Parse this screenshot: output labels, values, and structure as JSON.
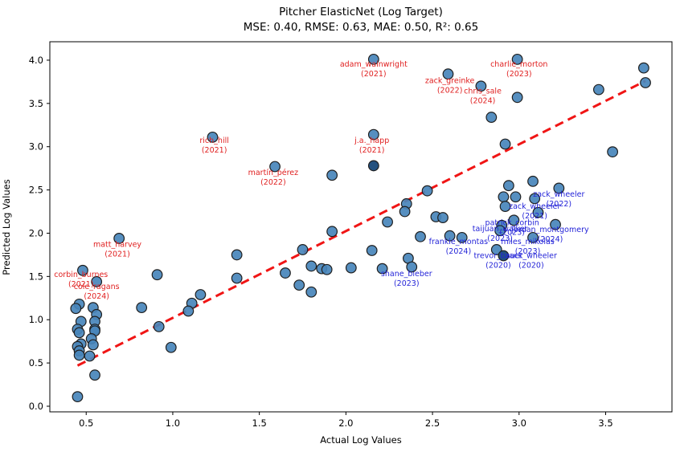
{
  "chart_data": {
    "type": "scatter",
    "title": "Pitcher ElasticNet (Log Target)",
    "subtitle": "MSE: 0.40, RMSE: 0.63, MAE: 0.50, R²: 0.65",
    "metrics": {
      "MSE": "0.40",
      "RMSE": "0.63",
      "MAE": "0.50",
      "R2": "0.65"
    },
    "xlabel": "Actual Log Values",
    "ylabel": "Predicted Log Values",
    "xlim": [
      0.29,
      3.883
    ],
    "ylim": [
      -0.065,
      4.213
    ],
    "xticks": [
      "0.5",
      "1.0",
      "1.5",
      "2.0",
      "2.5",
      "3.0",
      "3.5"
    ],
    "yticks": [
      "0.0",
      "0.5",
      "1.0",
      "1.5",
      "2.0",
      "2.5",
      "3.0",
      "3.5",
      "4.0"
    ],
    "grid": false,
    "legend": "none",
    "point_color": "#4886bb",
    "point_edge_color": "#1f1f1f",
    "dark_point_color": "#24517f",
    "line_color": "#f01515",
    "line_style": "dashed",
    "identity_line": {
      "x1": 0.45,
      "y1": 0.47,
      "x2": 3.73,
      "y2": 3.76
    },
    "points": [
      [
        2.16,
        4.01
      ],
      [
        2.99,
        4.01
      ],
      [
        2.59,
        3.84
      ],
      [
        2.78,
        3.7
      ],
      [
        2.99,
        3.57
      ],
      [
        2.84,
        3.34
      ],
      [
        2.92,
        3.03
      ],
      [
        2.16,
        3.14
      ],
      [
        1.23,
        3.11
      ],
      [
        1.59,
        2.77
      ],
      [
        3.72,
        3.91
      ],
      [
        3.73,
        3.74
      ],
      [
        3.46,
        3.66
      ],
      [
        3.54,
        2.94
      ],
      [
        1.92,
        2.67
      ],
      [
        1.92,
        2.02
      ],
      [
        1.75,
        1.81
      ],
      [
        1.37,
        1.75
      ],
      [
        1.37,
        1.48
      ],
      [
        1.65,
        1.54
      ],
      [
        1.8,
        1.62
      ],
      [
        1.86,
        1.59
      ],
      [
        1.89,
        1.58
      ],
      [
        2.03,
        1.6
      ],
      [
        1.73,
        1.4
      ],
      [
        1.8,
        1.32
      ],
      [
        2.47,
        2.49
      ],
      [
        2.35,
        2.34
      ],
      [
        2.34,
        2.25
      ],
      [
        2.24,
        2.13
      ],
      [
        2.52,
        2.19
      ],
      [
        2.56,
        2.18
      ],
      [
        2.43,
        1.96
      ],
      [
        2.6,
        1.97
      ],
      [
        2.67,
        1.95
      ],
      [
        2.15,
        1.8
      ],
      [
        2.36,
        1.71
      ],
      [
        2.21,
        1.59
      ],
      [
        2.38,
        1.61
      ],
      [
        2.94,
        2.55
      ],
      [
        3.08,
        2.6
      ],
      [
        2.91,
        2.42
      ],
      [
        2.98,
        2.42
      ],
      [
        3.23,
        2.52
      ],
      [
        3.09,
        2.4
      ],
      [
        2.92,
        2.31
      ],
      [
        3.11,
        2.24
      ],
      [
        2.97,
        2.15
      ],
      [
        2.9,
        2.09
      ],
      [
        2.89,
        2.03
      ],
      [
        3.21,
        2.1
      ],
      [
        3.08,
        1.95
      ],
      [
        2.87,
        1.81
      ],
      [
        0.48,
        1.57
      ],
      [
        0.56,
        1.44
      ],
      [
        0.69,
        1.94
      ],
      [
        0.91,
        1.52
      ],
      [
        1.16,
        1.29
      ],
      [
        1.11,
        1.19
      ],
      [
        1.09,
        1.1
      ],
      [
        0.92,
        0.92
      ],
      [
        0.99,
        0.68
      ],
      [
        0.82,
        1.14
      ],
      [
        0.46,
        1.18
      ],
      [
        0.44,
        1.13
      ],
      [
        0.54,
        1.14
      ],
      [
        0.56,
        1.06
      ],
      [
        0.47,
        0.98
      ],
      [
        0.55,
        0.98
      ],
      [
        0.55,
        0.89
      ],
      [
        0.45,
        0.89
      ],
      [
        0.46,
        0.85
      ],
      [
        0.55,
        0.87
      ],
      [
        0.53,
        0.78
      ],
      [
        0.47,
        0.72
      ],
      [
        0.45,
        0.69
      ],
      [
        0.54,
        0.71
      ],
      [
        0.46,
        0.64
      ],
      [
        0.52,
        0.58
      ],
      [
        0.46,
        0.59
      ],
      [
        0.55,
        0.36
      ],
      [
        0.45,
        0.11
      ]
    ],
    "dark_points": [
      [
        2.16,
        2.78
      ],
      [
        2.91,
        1.74
      ]
    ],
    "annotations": [
      {
        "name": "adam_wainwright",
        "year": "(2021)",
        "x": 2.16,
        "y": 3.9,
        "color": "#e02020"
      },
      {
        "name": "charlie_morton",
        "year": "(2023)",
        "x": 3.0,
        "y": 3.9,
        "color": "#e02020"
      },
      {
        "name": "zack_greinke",
        "year": "(2022)",
        "x": 2.6,
        "y": 3.71,
        "color": "#e02020"
      },
      {
        "name": "chris_sale",
        "year": "(2024)",
        "x": 2.79,
        "y": 3.59,
        "color": "#e02020"
      },
      {
        "name": "rich_hill",
        "year": "(2021)",
        "x": 1.24,
        "y": 3.02,
        "color": "#e02020"
      },
      {
        "name": "j.a._happ",
        "year": "(2021)",
        "x": 2.15,
        "y": 3.02,
        "color": "#e02020"
      },
      {
        "name": "martín_pérez",
        "year": "(2022)",
        "x": 1.58,
        "y": 2.65,
        "color": "#e02020"
      },
      {
        "name": "matt_harvey",
        "year": "(2021)",
        "x": 0.68,
        "y": 1.82,
        "color": "#e02020"
      },
      {
        "name": "corbin_burnes",
        "year": "(2021)",
        "x": 0.47,
        "y": 1.47,
        "color": "#e02020"
      },
      {
        "name": "cole_ragans",
        "year": "(2024)",
        "x": 0.56,
        "y": 1.33,
        "color": "#e02020"
      },
      {
        "name": "shane_bieber",
        "year": "(2023)",
        "x": 2.35,
        "y": 1.48,
        "color": "#2424d8"
      },
      {
        "name": "zack_wheeler",
        "year": "(2022)",
        "x": 3.23,
        "y": 2.4,
        "color": "#2424d8"
      },
      {
        "name": "zack_wheeler",
        "year": "(2021)",
        "x": 3.09,
        "y": 2.26,
        "color": "#2424d8"
      },
      {
        "name": "patrick_corbin",
        "year": "(2023)",
        "x": 2.96,
        "y": 2.07,
        "color": "#2424d8"
      },
      {
        "name": "taijuan_walker",
        "year": "(2023)",
        "x": 2.89,
        "y": 2.0,
        "color": "#2424d8"
      },
      {
        "name": "jordan_montgomery",
        "year": "(2024)",
        "x": 3.18,
        "y": 1.99,
        "color": "#2424d8"
      },
      {
        "name": "frankie_montas",
        "year": "(2024)",
        "x": 2.65,
        "y": 1.85,
        "color": "#2424d8"
      },
      {
        "name": "miles_mikolas",
        "year": "(2023)",
        "x": 3.05,
        "y": 1.85,
        "color": "#2424d8"
      },
      {
        "name": "trevor_bauer",
        "year": "(2020)",
        "x": 2.88,
        "y": 1.69,
        "color": "#2424d8"
      },
      {
        "name": "zack_wheeler",
        "year": "(2020)",
        "x": 3.07,
        "y": 1.69,
        "color": "#2424d8"
      }
    ]
  }
}
